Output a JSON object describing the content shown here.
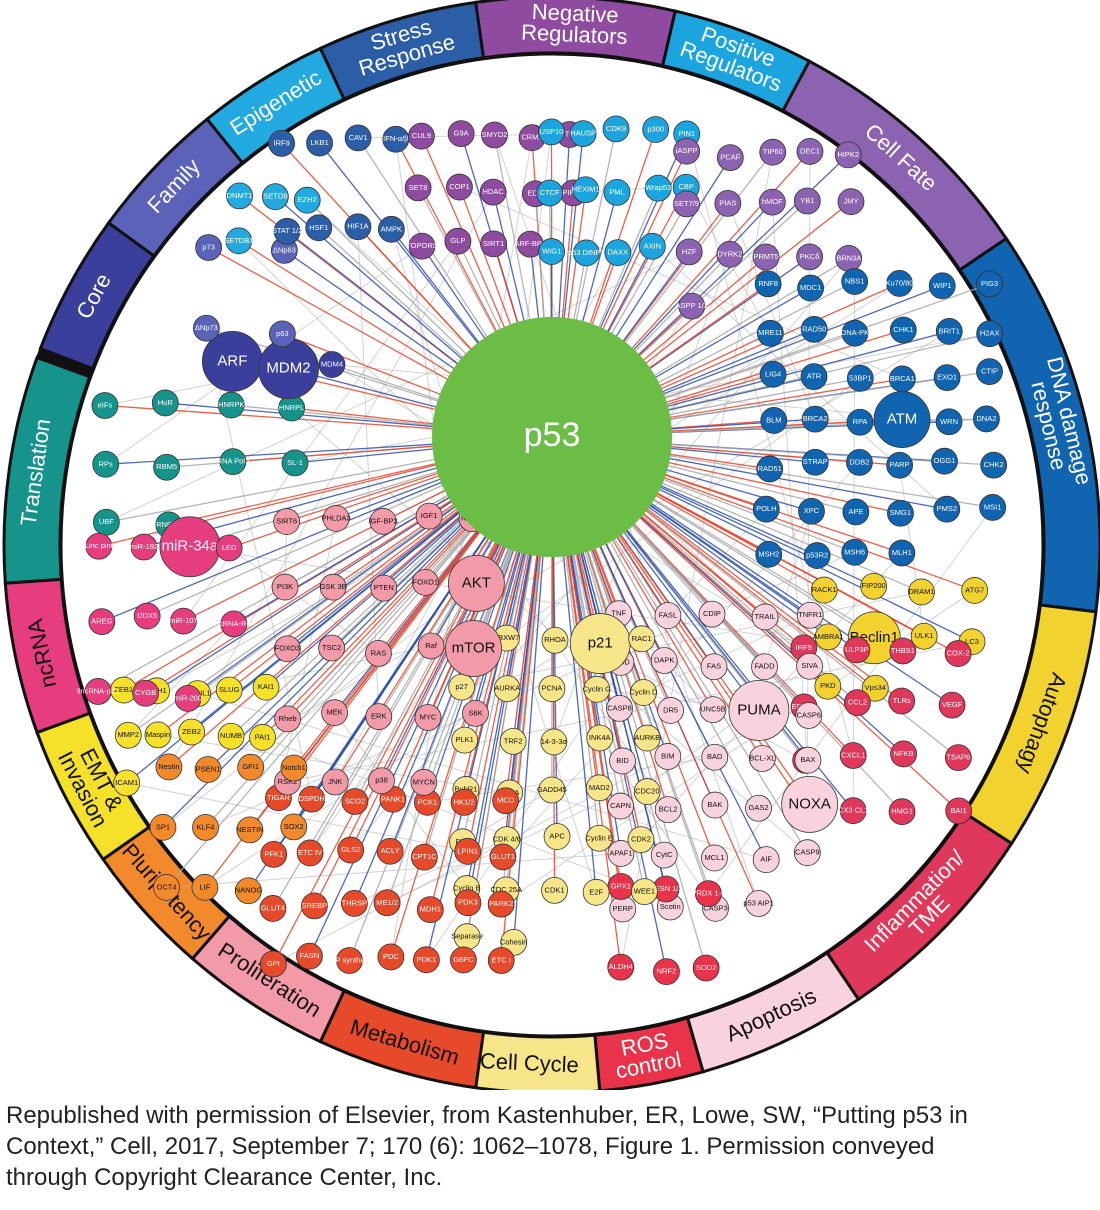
{
  "hub": {
    "label": "p53",
    "color": "#6cbd45"
  },
  "ring_colors": {
    "Translation": "#16948c",
    "Core": "#3b3f9c",
    "Family": "#5a63b8",
    "Epigenetic": "#22a9df",
    "Stress": "#2c5ea8",
    "Negative": "#8f4ba0",
    "Positive": "#1ca4de",
    "CellFate": "#8b63b0",
    "DNA": "#1064b0",
    "Autophagy": "#f2d22e",
    "Inflammation": "#e0385a",
    "Apoptosis": "#f8d2dc",
    "ROS": "#e8334a",
    "CellCycle": "#f7e58a",
    "Metabolism": "#e64a2b",
    "Proliferation": "#f29aa8",
    "Pluripotency": "#f28a2b",
    "EMT": "#f5e02a",
    "ncRNA": "#e53d7e"
  },
  "categories": [
    {
      "id": "Translation",
      "lines": [
        "Translation"
      ],
      "text": "light"
    },
    {
      "id": "Core",
      "lines": [
        "Core"
      ],
      "text": "light"
    },
    {
      "id": "Family",
      "lines": [
        "Family"
      ],
      "text": "light"
    },
    {
      "id": "Epigenetic",
      "lines": [
        "Epigenetic"
      ],
      "text": "light"
    },
    {
      "id": "Stress",
      "lines": [
        "Stress",
        "Response"
      ],
      "text": "light"
    },
    {
      "id": "Negative",
      "lines": [
        "Negative",
        "Regulators"
      ],
      "text": "light"
    },
    {
      "id": "Positive",
      "lines": [
        "Positive",
        "Regulators"
      ],
      "text": "light"
    },
    {
      "id": "CellFate",
      "lines": [
        "Cell Fate"
      ],
      "text": "light"
    },
    {
      "id": "DNA",
      "lines": [
        "DNA damage",
        "response"
      ],
      "text": "light"
    },
    {
      "id": "Autophagy",
      "lines": [
        "Autophagy"
      ],
      "text": "dark"
    },
    {
      "id": "Inflammation",
      "lines": [
        "Inflammation/",
        "TME"
      ],
      "text": "light"
    },
    {
      "id": "Apoptosis",
      "lines": [
        "Apoptosis"
      ],
      "text": "dark"
    },
    {
      "id": "ROS",
      "lines": [
        "ROS",
        "control"
      ],
      "text": "light"
    },
    {
      "id": "CellCycle",
      "lines": [
        "Cell Cycle"
      ],
      "text": "dark"
    },
    {
      "id": "Metabolism",
      "lines": [
        "Metabolism"
      ],
      "text": "dark"
    },
    {
      "id": "Proliferation",
      "lines": [
        "Proliferation"
      ],
      "text": "dark"
    },
    {
      "id": "Pluripotency",
      "lines": [
        "Pluripotency"
      ],
      "text": "dark"
    },
    {
      "id": "EMT",
      "lines": [
        "EMT &",
        "Invasion"
      ],
      "text": "dark"
    },
    {
      "id": "ncRNA",
      "lines": [
        "ncRNA"
      ],
      "text": "dark"
    }
  ],
  "node_groups": [
    {
      "cat": "Translation",
      "nodes": [
        "eIFs",
        "HuR",
        "HNRPK",
        "HNRPL",
        "RPs",
        "RBM5",
        "RNA Pol I",
        "SL-1",
        "UBF",
        "RNPC1"
      ]
    },
    {
      "cat": "Core",
      "nodes": [
        "ARF",
        "MDM2",
        "MDM4"
      ]
    },
    {
      "cat": "Family",
      "nodes": [
        "p73",
        "ΔNp63",
        "ΔNp73",
        "p63"
      ]
    },
    {
      "cat": "Epigenetic",
      "nodes": [
        "DNMT1",
        "SETD8",
        "EZH2",
        "SETDB1"
      ]
    },
    {
      "cat": "Stress",
      "nodes": [
        "IRF9",
        "LKB1",
        "CAV1",
        "IFN-α/β",
        "STAT 1/2",
        "HSF1",
        "HIF1A",
        "AMPK"
      ]
    },
    {
      "cat": "Negative",
      "nodes": [
        "CUL9",
        "G9A",
        "SMYD2",
        "CRM1",
        "BTG2",
        "SET8",
        "COP1",
        "HDAC",
        "EDD",
        "PIRH2",
        "TOPORS",
        "GLP",
        "SIRT1",
        "ARF-BP1"
      ]
    },
    {
      "cat": "Positive",
      "nodes": [
        "USP10",
        "HAUSP",
        "CDK9",
        "p300",
        "PIN1",
        "CTCF",
        "HEXIM1",
        "PML",
        "Wrap53",
        "CBP",
        "WIG1",
        "p53 DINP1",
        "DAXX",
        "AXIN"
      ]
    },
    {
      "cat": "CellFate",
      "nodes": [
        "iASPP",
        "PCAF",
        "TIP60",
        "DEC1",
        "HIPK2",
        "SET7/9",
        "PIAS",
        "hMOF",
        "YB1",
        "JMY",
        "HZF",
        "DYRK2",
        "PRMT5",
        "PKCδ",
        "BRN3A",
        "ASPP 1/2"
      ]
    },
    {
      "cat": "DNA",
      "nodes": [
        "RNF8",
        "MDC1",
        "NBS1",
        "Ku70/80",
        "WIP1",
        "PIG3",
        "MRE11",
        "RAD50",
        "DNA-PK",
        "CHK1",
        "BRIT1",
        "H2AX",
        "LIG4",
        "ATR",
        "53BP1",
        "BRCA1",
        "EXO1",
        "CTIP",
        "BLM",
        "BRCA2",
        "RPA",
        "ATM",
        "WRN",
        "DNA2",
        "RAD51",
        "STRAP",
        "DDB2",
        "PARP",
        "OGG1",
        "CHK2",
        "POLH",
        "XPC",
        "APE",
        "SMG1",
        "PMS2",
        "MSI1",
        "MSH2",
        "p53R2",
        "MSH6",
        "MLH1"
      ]
    },
    {
      "cat": "Autophagy",
      "nodes": [
        "RACK1",
        "FIP200",
        "DRAM1",
        "ATG7",
        "AMBRA1",
        "Beclin1",
        "ULK1",
        "LC3",
        "PKD",
        "Vps34"
      ]
    },
    {
      "cat": "Inflammation",
      "nodes": [
        "IRF5",
        "ULP3P",
        "THBS1",
        "COX-2",
        "ERAP1",
        "CCL2",
        "TLRs",
        "VEGF",
        "PD-L1",
        "CXCL1",
        "NFKB",
        "TSAP6",
        "TAP1",
        "CX3 CL1",
        "HMG1",
        "BAI1"
      ]
    },
    {
      "cat": "Apoptosis",
      "nodes": [
        "TNF",
        "FASL",
        "CDIP",
        "TRAIL",
        "TNFR1",
        "PIDD",
        "DAPK",
        "FAS",
        "FADD",
        "SIVA",
        "CASP8",
        "DR5",
        "UNC5B",
        "PUMA",
        "CASP6",
        "BID",
        "BIM",
        "BAD",
        "BCL-XL",
        "BAX",
        "CAPN",
        "BCL2",
        "BAK",
        "GAS2",
        "NOXA",
        "APAF1",
        "CytC",
        "MCL1",
        "AIF",
        "CASP9",
        "PERP",
        "Scotin",
        "CASP3",
        "p53 AIP1"
      ]
    },
    {
      "cat": "ROS",
      "nodes": [
        "GPX1",
        "SESN 1/2",
        "PRDX 1-6",
        "ALDH4",
        "NRF2",
        "SOD2"
      ]
    },
    {
      "cat": "CellCycle",
      "nodes": [
        "LATS2",
        "FBXW7",
        "RHOA",
        "p21",
        "RAC1",
        "p27",
        "AURKA",
        "PCNA",
        "Cyclin G",
        "Cyclin D",
        "PLK1",
        "TRF2",
        "14-3-3σ",
        "INK4A",
        "AURKB",
        "BubR1",
        "PP2A",
        "GADD45",
        "MAD2",
        "CDC20",
        "RB1",
        "CDK 4/6",
        "APC",
        "Cyclin E",
        "CDK2",
        "Cyclin B",
        "CDC 25A",
        "CDK1",
        "E2F",
        "WEE1",
        "Separase",
        "Cohesin"
      ]
    },
    {
      "cat": "Metabolism",
      "nodes": [
        "TIGAR",
        "DSPDH",
        "SCO2",
        "PANK1",
        "PCK1",
        "HK1/2",
        "MCD",
        "PFK1",
        "ETC IV",
        "GLS2",
        "ACLY",
        "CPT1C",
        "LPIN1",
        "GLUT1",
        "GLUT4",
        "SREBP",
        "THRSP",
        "ME1/2",
        "MDH1",
        "PDK3",
        "PARK2",
        "GPI",
        "FASN",
        "ATP synthase",
        "PDC",
        "PDK1",
        "G6PC",
        "ETC I"
      ]
    },
    {
      "cat": "Proliferation",
      "nodes": [
        "SIRT6",
        "PHLDA3",
        "IGF-BP3",
        "IGF1",
        "IGF1R",
        "PI3K",
        "GSK 3B",
        "PTEN",
        "FOXO1",
        "AKT",
        "FOXO3",
        "TSC2",
        "RAS",
        "Raf",
        "mTOR",
        "Rheb",
        "MEK",
        "ERK",
        "MYC",
        "S6K",
        "RSK2",
        "JNK",
        "p38",
        "MYCN"
      ]
    },
    {
      "cat": "Pluripotency",
      "nodes": [
        "Nestin",
        "PSEN1",
        "GFI1",
        "Notch1",
        "SP1",
        "KLF4",
        "NESTIN",
        "SOX2",
        "OCT4",
        "LIF",
        "NANOG"
      ]
    },
    {
      "cat": "EMT",
      "nodes": [
        "ZEB1",
        "CDH1",
        "SNAIL1",
        "SLUG",
        "KAI1",
        "MMP2",
        "Maspin",
        "ZEB2",
        "NUMB",
        "PAI1",
        "ICAM1"
      ]
    },
    {
      "cat": "ncRNA",
      "nodes": [
        "Linc pint",
        "miR-192",
        "miR-34a",
        "LED",
        "AREG",
        "DDX5",
        "miR-107",
        "lincRNA-RoR",
        "lincRNA-p21",
        "CYGB",
        "miR-200"
      ]
    }
  ],
  "caption": {
    "line1": "Republished with permission of Elsevier, from Kastenhuber, ER, Lowe, SW, “Putting p53 in",
    "line2": "Context,” Cell, 2017, September 7; 170 (6): 1062–1078, Figure 1. Permission conveyed",
    "line3": "through Copyright Clearance Center, Inc."
  }
}
